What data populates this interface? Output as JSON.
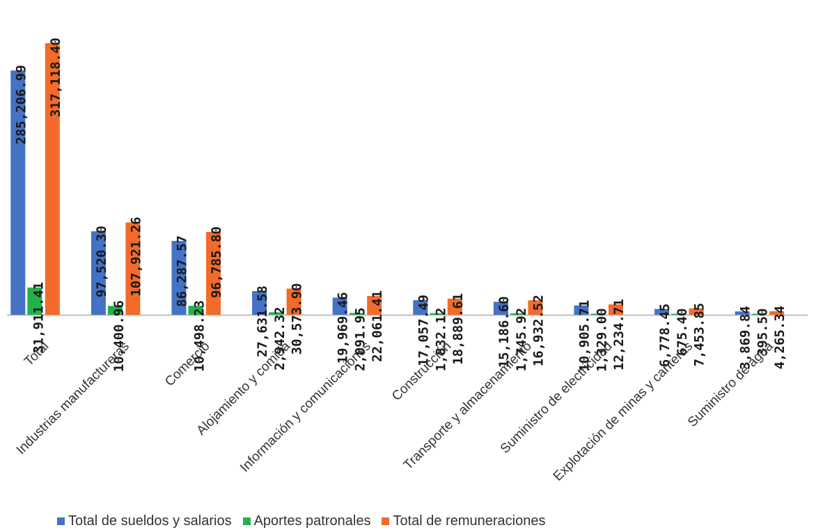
{
  "chart_data": {
    "type": "bar",
    "categories": [
      "Total",
      "Industrias manufactureras",
      "Comercio",
      "Alojamiento y comida",
      "Información y comunicaciones",
      "Construcción",
      "Transporte y almacenamiento",
      "Suministro de electricidad",
      "Explotación de minas y canteras",
      "Suministro de agua"
    ],
    "series": [
      {
        "name": "Total de sueldos y salarios",
        "color": "#4472C4",
        "values": [
          285206.99,
          97520.3,
          86287.57,
          27631.58,
          19969.46,
          17057.49,
          15186.6,
          10905.71,
          6778.45,
          3869.84
        ],
        "labels": [
          "285,206.99",
          "97,520.30",
          "86,287.57",
          "27,631.58",
          "19,969.46",
          "17,057.49",
          "15,186.60",
          "10,905.71",
          "6,778.45",
          "3,869.84"
        ]
      },
      {
        "name": "Aportes patronales",
        "color": "#22B14C",
        "values": [
          31911.41,
          10400.96,
          10498.23,
          2942.32,
          2091.95,
          1832.12,
          1745.92,
          1329.0,
          675.4,
          395.5
        ],
        "labels": [
          "31,911.41",
          "10,400.96",
          "10,498.23",
          "2,942.32",
          "2,091.95",
          "1,832.12",
          "1,745.92",
          "1,329.00",
          "675.40",
          "395.50"
        ]
      },
      {
        "name": "Total de remuneraciones",
        "color": "#F26B2A",
        "values": [
          317118.4,
          107921.26,
          96785.8,
          30573.9,
          22061.41,
          18889.61,
          16932.52,
          12234.71,
          7453.85,
          4265.34
        ],
        "labels": [
          "317,118.40",
          "107,921.26",
          "96,785.80",
          "30,573.90",
          "22,061.41",
          "18,889.61",
          "16,932.52",
          "12,234.71",
          "7,453.85",
          "4,265.34"
        ]
      }
    ],
    "ylim": [
      0,
      317118.4
    ],
    "grid": false,
    "legend_position": "bottom"
  }
}
